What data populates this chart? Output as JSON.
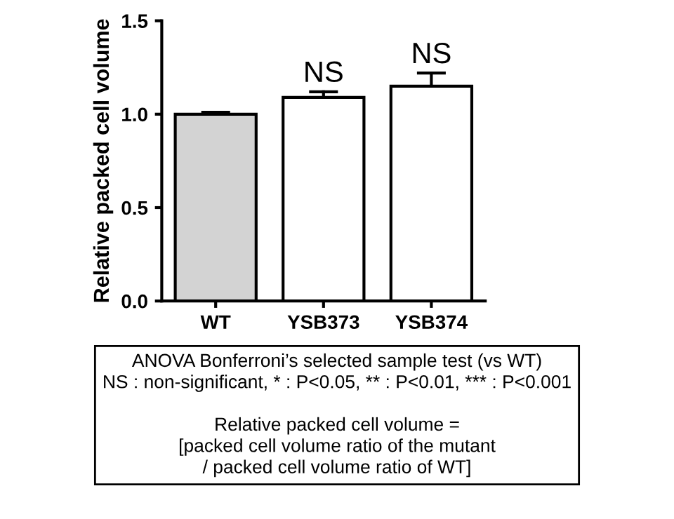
{
  "chart_data": {
    "type": "bar",
    "ylabel": "Relative packed cell volume",
    "categories": [
      "WT",
      "YSB373",
      "YSB374"
    ],
    "values": [
      1.0,
      1.09,
      1.15
    ],
    "colors": [
      "#d3d3d3",
      "#ffffff",
      "#ffffff"
    ],
    "errors": [
      [
        1.0,
        1.01
      ],
      [
        1.09,
        1.12
      ],
      [
        1.15,
        1.22
      ]
    ],
    "ylim": [
      0,
      1.5
    ],
    "yticks": [
      {
        "value": 0,
        "label": "0.0"
      },
      {
        "value": 0.5,
        "label": "0.5"
      },
      {
        "value": 1.0,
        "label": "1.0"
      },
      {
        "value": 1.5,
        "label": "1.5"
      }
    ],
    "grid": false,
    "legend": false,
    "annotations": [
      {
        "text": "NS",
        "x": "YSB373",
        "y": 1.12
      },
      {
        "text": "NS",
        "x": "YSB374",
        "y": 1.22
      },
      "ANOVA Bonferroni’s selected sample test (vs WT)\nNS : non-significant, * : P<0.05, ** : P<0.01, *** : P<0.001\n\nRelative packed cell volume =\n[packed cell volume ratio of the mutant\n/ packed cell volume ratio of WT]"
    ]
  }
}
